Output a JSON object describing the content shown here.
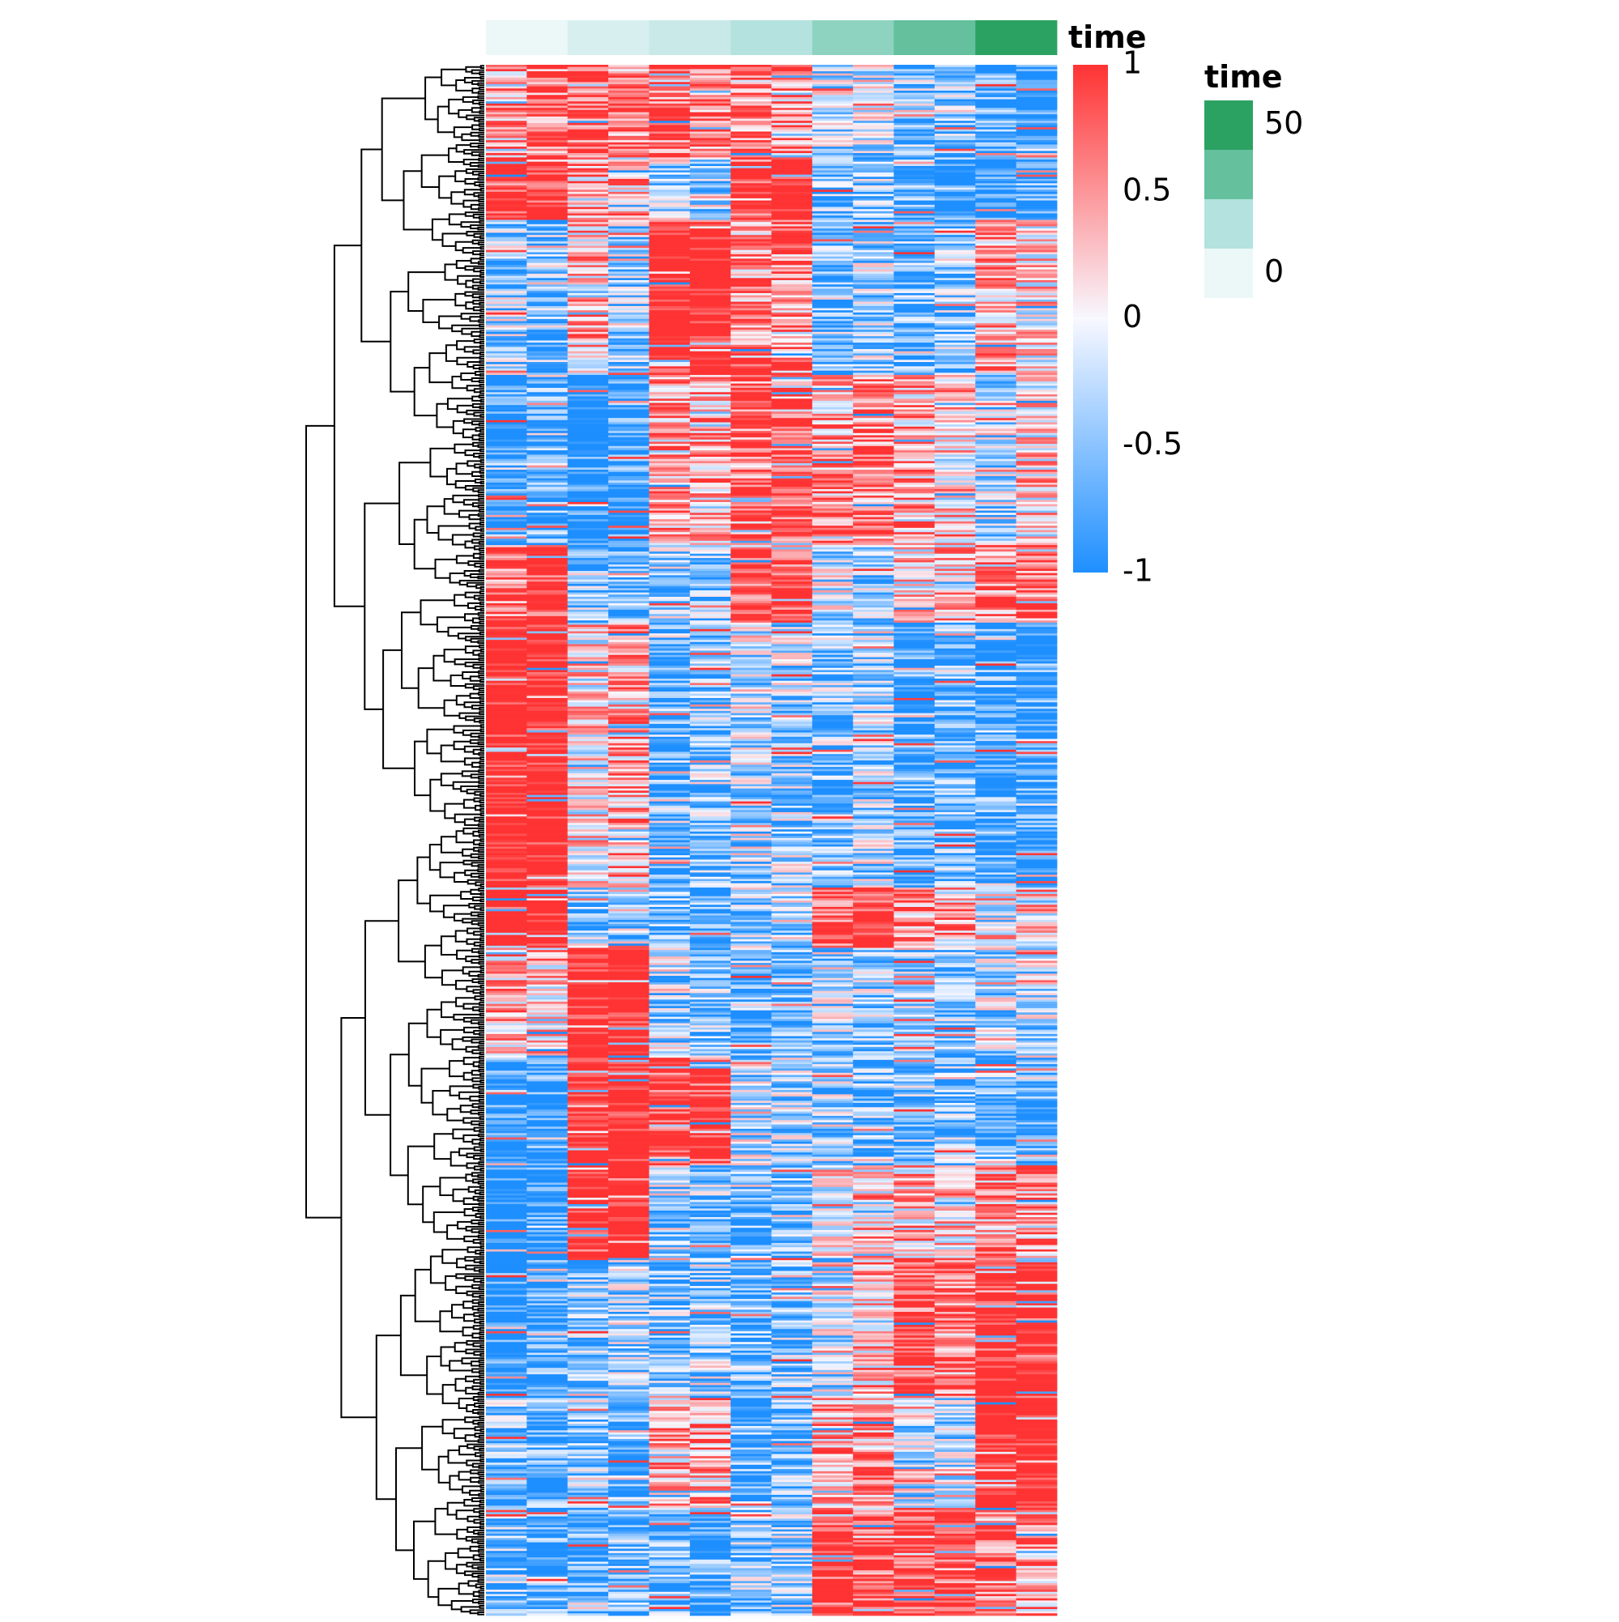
{
  "chart_data": {
    "type": "heatmap",
    "title": "",
    "xlabel": "",
    "ylabel": "",
    "n_columns": 14,
    "n_rows_approx": 720,
    "row_dendrogram": true,
    "colors": {
      "high": "#ff3333",
      "mid": "#f8f8ff",
      "low": "#1e8fff",
      "dendrogram": "#000000"
    },
    "column_annotation": {
      "name": "time",
      "label": "time",
      "column_colors": [
        "#ecf7f7",
        "#ecf7f7",
        "#d8efef",
        "#d8efef",
        "#c9e9e9",
        "#c9e9e9",
        "#b3e2df",
        "#b3e2df",
        "#8dd3c0",
        "#8dd3c0",
        "#64c09d",
        "#64c09d",
        "#2ca262",
        "#2ca262"
      ]
    },
    "color_legend": {
      "title": "",
      "ticks": [
        {
          "value": 1,
          "label": "1"
        },
        {
          "value": 0.5,
          "label": "0.5"
        },
        {
          "value": 0,
          "label": "0"
        },
        {
          "value": -0.5,
          "label": "-0.5"
        },
        {
          "value": -1,
          "label": "-1"
        }
      ],
      "range": [
        -1,
        1
      ]
    },
    "annotation_legend": {
      "title": "time",
      "swatches": [
        {
          "color": "#2ca262",
          "label": "50"
        },
        {
          "color": "#64c09d",
          "label": ""
        },
        {
          "color": "#b3e2df",
          "label": ""
        },
        {
          "color": "#ecf7f7",
          "label": "0"
        }
      ]
    },
    "block_pattern": {
      "description_values": "per row-segment mean z-score per column, estimated",
      "segments": [
        {
          "rows_fraction": [
            0.0,
            0.06
          ],
          "values": [
            0.4,
            0.6,
            0.7,
            0.5,
            0.6,
            0.5,
            0.5,
            0.4,
            -0.2,
            -0.1,
            -0.4,
            -0.4,
            -0.6,
            -0.8
          ]
        },
        {
          "rows_fraction": [
            0.06,
            0.1
          ],
          "values": [
            0.9,
            0.9,
            0.3,
            0.2,
            -0.3,
            -0.4,
            1,
            1,
            -0.5,
            -0.4,
            -0.6,
            -0.7,
            -0.8,
            -0.6
          ]
        },
        {
          "rows_fraction": [
            0.1,
            0.2
          ],
          "values": [
            -0.3,
            -0.4,
            0.2,
            -0.3,
            1,
            1,
            0.4,
            0.5,
            -0.5,
            -0.3,
            -0.5,
            -0.4,
            0.3,
            0.1
          ]
        },
        {
          "rows_fraction": [
            0.2,
            0.31
          ],
          "values": [
            -0.8,
            -0.6,
            -0.8,
            -0.7,
            0.4,
            0.3,
            0.6,
            0.7,
            0.4,
            0.5,
            0.3,
            0.2,
            -0.2,
            0.1
          ]
        },
        {
          "rows_fraction": [
            0.31,
            0.36
          ],
          "values": [
            0.6,
            0.8,
            -0.4,
            -0.5,
            -0.3,
            -0.4,
            0.7,
            0.8,
            -0.2,
            -0.3,
            0.1,
            0.2,
            0.5,
            0.6
          ]
        },
        {
          "rows_fraction": [
            0.36,
            0.53
          ],
          "values": [
            1,
            1,
            0.1,
            0.3,
            -0.5,
            -0.4,
            -0.2,
            -0.3,
            -0.4,
            -0.3,
            -0.6,
            -0.5,
            -0.6,
            -0.7
          ]
        },
        {
          "rows_fraction": [
            0.53,
            0.57
          ],
          "values": [
            1,
            1,
            -0.4,
            -0.5,
            -0.5,
            -0.6,
            -0.3,
            -0.2,
            0.7,
            0.8,
            0.4,
            0.3,
            0.1,
            0.2
          ]
        },
        {
          "rows_fraction": [
            0.57,
            0.64
          ],
          "values": [
            0.3,
            0.2,
            1,
            1,
            -0.3,
            -0.4,
            -0.5,
            -0.6,
            -0.2,
            -0.3,
            -0.4,
            -0.5,
            -0.3,
            -0.2
          ]
        },
        {
          "rows_fraction": [
            0.64,
            0.71
          ],
          "values": [
            -0.8,
            -0.7,
            1,
            1,
            0.8,
            0.8,
            -0.2,
            -0.3,
            -0.3,
            -0.4,
            -0.5,
            -0.4,
            -0.5,
            -0.6
          ]
        },
        {
          "rows_fraction": [
            0.71,
            0.77
          ],
          "values": [
            -0.9,
            -0.8,
            1,
            1,
            -0.3,
            -0.4,
            -0.5,
            -0.5,
            0.1,
            0.2,
            0.2,
            0.1,
            0.3,
            0.4
          ]
        },
        {
          "rows_fraction": [
            0.77,
            0.86
          ],
          "values": [
            -0.8,
            -0.7,
            -0.4,
            -0.3,
            -0.4,
            -0.3,
            -0.5,
            -0.4,
            -0.2,
            0.2,
            0.7,
            0.6,
            0.9,
            0.9
          ]
        },
        {
          "rows_fraction": [
            0.86,
            0.93
          ],
          "values": [
            -0.5,
            -0.6,
            -0.4,
            -0.5,
            0.3,
            0.4,
            -0.6,
            -0.5,
            0.3,
            0.4,
            -0.2,
            -0.1,
            1,
            1
          ]
        },
        {
          "rows_fraction": [
            0.93,
            1.0
          ],
          "values": [
            -0.4,
            -0.5,
            -0.6,
            -0.5,
            -0.5,
            -0.6,
            -0.4,
            -0.3,
            0.8,
            0.7,
            0.8,
            0.9,
            0.5,
            0.4
          ]
        }
      ]
    }
  }
}
